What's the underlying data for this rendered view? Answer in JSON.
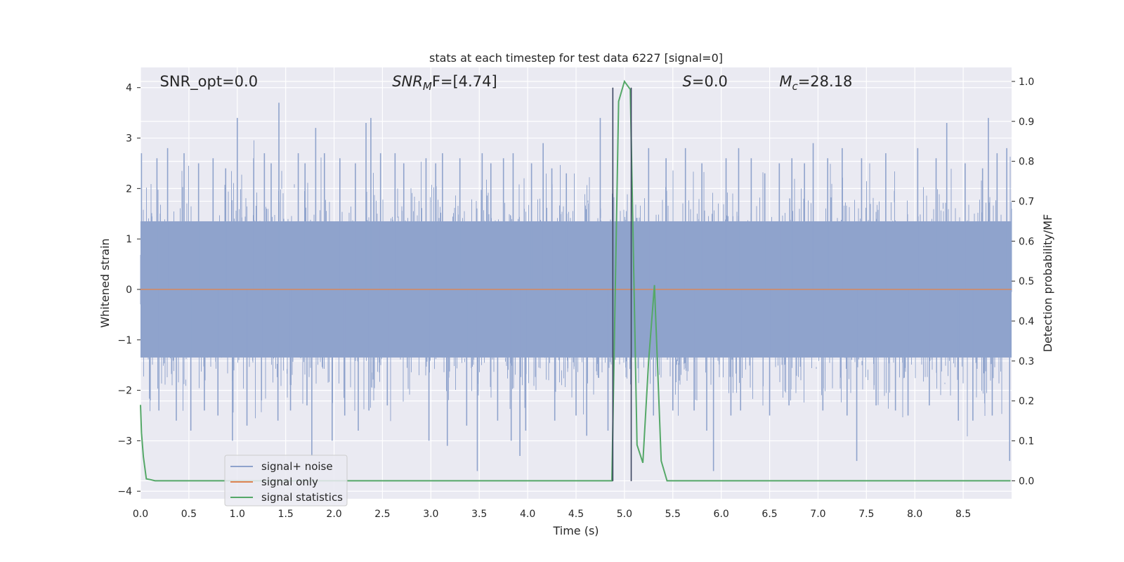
{
  "chart_data": {
    "type": "line",
    "title": "stats at each timestep for test data 6227 [signal=0]",
    "xlabel": "Time (s)",
    "ylabel": "Whitened strain",
    "y2label": "Detection probability/MF",
    "xlim": [
      0,
      9
    ],
    "ylim": [
      -4.15,
      4.4
    ],
    "y2lim": [
      -0.045,
      1.035
    ],
    "x_ticks": [
      0.0,
      0.5,
      1.0,
      1.5,
      2.0,
      2.5,
      3.0,
      3.5,
      4.0,
      4.5,
      5.0,
      5.5,
      6.0,
      6.5,
      7.0,
      7.5,
      8.0,
      8.5
    ],
    "y_ticks": [
      -4,
      -3,
      -2,
      -1,
      0,
      1,
      2,
      3,
      4
    ],
    "y2_ticks": [
      0.0,
      0.1,
      0.2,
      0.3,
      0.4,
      0.5,
      0.6,
      0.7,
      0.8,
      0.9,
      1.0
    ],
    "grid": true,
    "legend_position": "lower-left",
    "annotations": [
      {
        "key": "snr_opt",
        "text": "SNR_opt=0.0",
        "x": 0.2
      },
      {
        "key": "snr_mf",
        "text": "SNR",
        "sub": "M",
        "rest": "F=[4.74]",
        "x": 2.6,
        "italic": true
      },
      {
        "key": "s",
        "text": "S",
        "rest": "=0.0",
        "x": 5.6,
        "italic": true
      },
      {
        "key": "mc",
        "text": "M",
        "sub": "c",
        "rest": "=28.18",
        "x": 6.6,
        "italic": true
      }
    ],
    "vertical_lines": [
      4.88,
      5.07
    ],
    "series": [
      {
        "name": "signal+ noise",
        "axis": "left",
        "color": "#8fa3cc",
        "kind": "whitened_noise",
        "spikes": [
          [
            0.01,
            2.7
          ],
          [
            0.1,
            -2.2
          ],
          [
            0.17,
            2.6
          ],
          [
            0.19,
            -2.4
          ],
          [
            0.28,
            2.8
          ],
          [
            0.37,
            -2.6
          ],
          [
            0.45,
            2.7
          ],
          [
            0.52,
            -2.8
          ],
          [
            0.6,
            2.5
          ],
          [
            0.66,
            -2.4
          ],
          [
            0.75,
            2.6
          ],
          [
            0.8,
            -2.5
          ],
          [
            0.88,
            2.4
          ],
          [
            0.95,
            -3.0
          ],
          [
            1.0,
            3.4
          ],
          [
            1.1,
            -2.7
          ],
          [
            1.17,
            2.6
          ],
          [
            1.25,
            -2.2
          ],
          [
            1.28,
            2.7
          ],
          [
            1.35,
            2.5
          ],
          [
            1.42,
            -2.6
          ],
          [
            1.43,
            3.7
          ],
          [
            1.55,
            -2.4
          ],
          [
            1.63,
            2.7
          ],
          [
            1.72,
            -2.3
          ],
          [
            1.7,
            2.5
          ],
          [
            1.77,
            -3.3
          ],
          [
            1.81,
            3.2
          ],
          [
            1.9,
            2.7
          ],
          [
            1.98,
            -3.0
          ],
          [
            2.06,
            2.6
          ],
          [
            2.11,
            -2.5
          ],
          [
            2.22,
            2.5
          ],
          [
            2.25,
            -2.8
          ],
          [
            2.33,
            3.3
          ],
          [
            2.36,
            -2.4
          ],
          [
            2.38,
            3.4
          ],
          [
            2.48,
            2.7
          ],
          [
            2.55,
            -2.3
          ],
          [
            2.63,
            2.7
          ],
          [
            2.72,
            2.5
          ],
          [
            2.95,
            2.6
          ],
          [
            2.98,
            -3.0
          ],
          [
            3.05,
            2.5
          ],
          [
            3.12,
            2.7
          ],
          [
            3.17,
            -3.1
          ],
          [
            3.3,
            2.6
          ],
          [
            3.37,
            -2.7
          ],
          [
            3.48,
            -3.6
          ],
          [
            3.53,
            2.7
          ],
          [
            3.62,
            2.5
          ],
          [
            3.69,
            -2.6
          ],
          [
            3.75,
            2.6
          ],
          [
            3.83,
            -3.0
          ],
          [
            3.85,
            2.7
          ],
          [
            3.92,
            -3.3
          ],
          [
            3.98,
            -2.8
          ],
          [
            4.04,
            2.5
          ],
          [
            4.16,
            2.9
          ],
          [
            4.25,
            2.4
          ],
          [
            4.28,
            -2.6
          ],
          [
            4.4,
            2.3
          ],
          [
            4.5,
            -2.5
          ],
          [
            4.61,
            -2.9
          ],
          [
            4.75,
            3.4
          ],
          [
            4.83,
            -2.8
          ],
          [
            5.25,
            2.8
          ],
          [
            5.3,
            -2.5
          ],
          [
            5.43,
            2.6
          ],
          [
            5.5,
            -2.4
          ],
          [
            5.63,
            2.8
          ],
          [
            5.72,
            -2.4
          ],
          [
            5.8,
            2.5
          ],
          [
            5.85,
            -2.8
          ],
          [
            5.92,
            -3.6
          ],
          [
            6.05,
            2.6
          ],
          [
            6.1,
            -2.5
          ],
          [
            6.18,
            2.8
          ],
          [
            6.2,
            -2.4
          ],
          [
            6.31,
            2.6
          ],
          [
            6.45,
            2.3
          ],
          [
            6.5,
            -2.5
          ],
          [
            6.6,
            2.5
          ],
          [
            6.7,
            -2.3
          ],
          [
            6.73,
            2.6
          ],
          [
            6.86,
            2.5
          ],
          [
            6.95,
            2.9
          ],
          [
            7.05,
            -2.4
          ],
          [
            7.1,
            2.6
          ],
          [
            7.25,
            2.8
          ],
          [
            7.3,
            -2.5
          ],
          [
            7.4,
            -3.4
          ],
          [
            7.45,
            2.6
          ],
          [
            7.6,
            -2.3
          ],
          [
            7.7,
            2.7
          ],
          [
            7.8,
            -2.4
          ],
          [
            7.93,
            -2.5
          ],
          [
            8.03,
            2.8
          ],
          [
            8.15,
            -2.3
          ],
          [
            8.22,
            2.6
          ],
          [
            8.33,
            3.3
          ],
          [
            8.45,
            -2.6
          ],
          [
            8.52,
            2.5
          ],
          [
            8.6,
            -2.6
          ],
          [
            8.7,
            2.4
          ],
          [
            8.76,
            3.4
          ],
          [
            8.8,
            -2.5
          ],
          [
            8.85,
            2.7
          ],
          [
            8.95,
            2.8
          ],
          [
            8.98,
            -3.4
          ]
        ]
      },
      {
        "name": "signal only",
        "axis": "left",
        "color": "#dd8452",
        "x": [
          0.0,
          9.0
        ],
        "y": [
          0.0,
          0.0
        ]
      },
      {
        "name": "signal statistics",
        "axis": "right",
        "color": "#55a868",
        "x": [
          0.0,
          0.01,
          0.03,
          0.06,
          0.1,
          0.15,
          4.87,
          4.94,
          5.0,
          5.06,
          5.13,
          5.19,
          5.25,
          5.31,
          5.38,
          5.44,
          5.5,
          8.99
        ],
        "y": [
          0.19,
          0.12,
          0.06,
          0.005,
          0.003,
          0.0,
          0.0,
          0.95,
          1.0,
          0.98,
          0.09,
          0.045,
          0.3,
          0.49,
          0.05,
          0.0,
          0.0,
          0.0
        ]
      }
    ]
  }
}
